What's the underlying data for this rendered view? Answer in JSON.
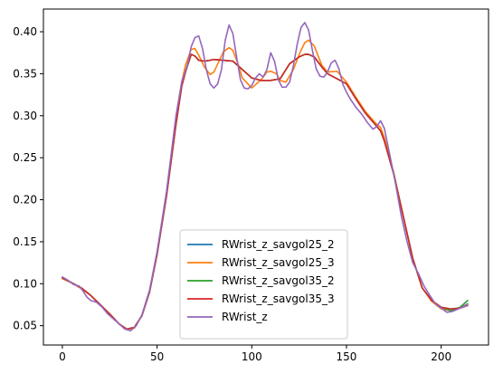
{
  "chart_data": {
    "type": "line",
    "title": "",
    "xlabel": "",
    "ylabel": "",
    "xlim": [
      -10,
      225
    ],
    "ylim": [
      0.027,
      0.427
    ],
    "xticks": [
      0,
      50,
      100,
      150,
      200
    ],
    "yticks": [
      0.05,
      0.1,
      0.15,
      0.2,
      0.25,
      0.3,
      0.35,
      0.4
    ],
    "xtick_labels": [
      "0",
      "50",
      "100",
      "150",
      "200"
    ],
    "ytick_labels": [
      "0.05",
      "0.10",
      "0.15",
      "0.20",
      "0.25",
      "0.30",
      "0.35",
      "0.40"
    ],
    "legend_position": "lower center",
    "grid": false,
    "series": [
      {
        "name": "RWrist_z_savgol25_2",
        "color": "#1f77b4",
        "x": [
          0,
          5,
          10,
          15,
          20,
          25,
          30,
          34,
          38,
          42,
          46,
          50,
          55,
          60,
          63,
          65,
          68,
          70,
          72,
          75,
          78,
          80,
          85,
          90,
          95,
          100,
          105,
          110,
          115,
          120,
          125,
          128,
          130,
          133,
          137,
          140,
          145,
          150,
          155,
          160,
          165,
          168,
          170,
          175,
          180,
          185,
          190,
          195,
          200,
          205,
          210,
          214
        ],
        "y": [
          0.107,
          0.101,
          0.095,
          0.086,
          0.075,
          0.064,
          0.052,
          0.046,
          0.048,
          0.062,
          0.09,
          0.135,
          0.205,
          0.29,
          0.335,
          0.352,
          0.373,
          0.371,
          0.366,
          0.365,
          0.366,
          0.367,
          0.366,
          0.365,
          0.355,
          0.345,
          0.342,
          0.342,
          0.344,
          0.362,
          0.37,
          0.373,
          0.373,
          0.37,
          0.358,
          0.35,
          0.344,
          0.338,
          0.32,
          0.303,
          0.29,
          0.282,
          0.27,
          0.23,
          0.18,
          0.13,
          0.095,
          0.08,
          0.072,
          0.07,
          0.071,
          0.076
        ]
      },
      {
        "name": "RWrist_z_savgol25_3",
        "color": "#ff7f0e",
        "x": [
          0,
          5,
          10,
          15,
          20,
          25,
          30,
          34,
          38,
          42,
          46,
          50,
          55,
          60,
          63,
          65,
          68,
          70,
          72,
          75,
          78,
          80,
          85,
          88,
          90,
          93,
          95,
          100,
          105,
          108,
          110,
          113,
          115,
          118,
          122,
          125,
          128,
          130,
          133,
          137,
          140,
          145,
          150,
          155,
          160,
          165,
          168,
          170,
          175,
          180,
          185,
          190,
          195,
          200,
          205,
          210,
          214
        ],
        "y": [
          0.106,
          0.101,
          0.094,
          0.086,
          0.075,
          0.064,
          0.052,
          0.046,
          0.047,
          0.062,
          0.09,
          0.135,
          0.205,
          0.295,
          0.34,
          0.36,
          0.379,
          0.38,
          0.372,
          0.358,
          0.349,
          0.352,
          0.376,
          0.381,
          0.378,
          0.36,
          0.345,
          0.333,
          0.343,
          0.352,
          0.353,
          0.35,
          0.342,
          0.34,
          0.355,
          0.373,
          0.387,
          0.39,
          0.383,
          0.36,
          0.352,
          0.353,
          0.34,
          0.322,
          0.305,
          0.292,
          0.286,
          0.274,
          0.232,
          0.18,
          0.13,
          0.095,
          0.079,
          0.07,
          0.068,
          0.071,
          0.075
        ]
      },
      {
        "name": "RWrist_z_savgol35_2",
        "color": "#2ca02c",
        "x": [
          0,
          5,
          10,
          15,
          20,
          25,
          30,
          34,
          38,
          42,
          46,
          50,
          55,
          60,
          63,
          65,
          68,
          70,
          72,
          75,
          78,
          80,
          85,
          90,
          95,
          100,
          105,
          110,
          115,
          120,
          125,
          128,
          130,
          133,
          137,
          140,
          145,
          150,
          155,
          160,
          165,
          168,
          170,
          175,
          180,
          185,
          190,
          195,
          200,
          205,
          210,
          214
        ],
        "y": [
          0.107,
          0.101,
          0.095,
          0.086,
          0.075,
          0.064,
          0.052,
          0.046,
          0.048,
          0.062,
          0.09,
          0.135,
          0.205,
          0.29,
          0.335,
          0.352,
          0.373,
          0.371,
          0.366,
          0.365,
          0.366,
          0.367,
          0.366,
          0.365,
          0.355,
          0.345,
          0.342,
          0.342,
          0.344,
          0.362,
          0.37,
          0.373,
          0.373,
          0.37,
          0.358,
          0.35,
          0.344,
          0.338,
          0.32,
          0.303,
          0.29,
          0.282,
          0.27,
          0.23,
          0.18,
          0.13,
          0.095,
          0.08,
          0.072,
          0.068,
          0.072,
          0.08
        ]
      },
      {
        "name": "RWrist_z_savgol35_3",
        "color": "#d62728",
        "x": [
          0,
          5,
          10,
          15,
          20,
          25,
          30,
          34,
          38,
          42,
          46,
          50,
          55,
          60,
          63,
          65,
          68,
          70,
          72,
          75,
          78,
          80,
          85,
          90,
          95,
          100,
          105,
          110,
          115,
          120,
          125,
          128,
          130,
          133,
          137,
          140,
          145,
          150,
          155,
          160,
          165,
          168,
          170,
          175,
          180,
          185,
          190,
          195,
          200,
          205,
          210,
          214
        ],
        "y": [
          0.107,
          0.101,
          0.095,
          0.086,
          0.075,
          0.064,
          0.052,
          0.046,
          0.048,
          0.062,
          0.09,
          0.135,
          0.205,
          0.29,
          0.335,
          0.352,
          0.373,
          0.371,
          0.366,
          0.365,
          0.366,
          0.367,
          0.366,
          0.365,
          0.355,
          0.345,
          0.342,
          0.342,
          0.344,
          0.362,
          0.37,
          0.373,
          0.373,
          0.37,
          0.358,
          0.35,
          0.344,
          0.338,
          0.32,
          0.303,
          0.29,
          0.282,
          0.27,
          0.23,
          0.18,
          0.13,
          0.095,
          0.08,
          0.072,
          0.07,
          0.071,
          0.074
        ]
      },
      {
        "name": "RWrist_z",
        "color": "#9467bd",
        "x": [
          0,
          3,
          6,
          9,
          11,
          13,
          15,
          18,
          21,
          24,
          27,
          30,
          33,
          36,
          39,
          42,
          46,
          50,
          55,
          60,
          63,
          66,
          68,
          70,
          72,
          74,
          76,
          78,
          80,
          82,
          84,
          86,
          88,
          90,
          92,
          94,
          96,
          98,
          100,
          102,
          104,
          106,
          108,
          110,
          112,
          114,
          116,
          118,
          120,
          122,
          124,
          126,
          128,
          130,
          132,
          134,
          136,
          138,
          140,
          142,
          144,
          146,
          148,
          150,
          152,
          155,
          158,
          161,
          164,
          166,
          168,
          170,
          173,
          176,
          179,
          182,
          185,
          188,
          191,
          194,
          197,
          200,
          203,
          206,
          209,
          212,
          214
        ],
        "y": [
          0.108,
          0.104,
          0.099,
          0.097,
          0.091,
          0.084,
          0.08,
          0.078,
          0.072,
          0.064,
          0.058,
          0.052,
          0.046,
          0.044,
          0.05,
          0.063,
          0.092,
          0.138,
          0.21,
          0.3,
          0.34,
          0.36,
          0.382,
          0.393,
          0.395,
          0.38,
          0.355,
          0.338,
          0.333,
          0.338,
          0.355,
          0.39,
          0.408,
          0.398,
          0.37,
          0.343,
          0.333,
          0.332,
          0.336,
          0.345,
          0.35,
          0.346,
          0.355,
          0.375,
          0.365,
          0.343,
          0.334,
          0.334,
          0.34,
          0.36,
          0.385,
          0.405,
          0.411,
          0.402,
          0.378,
          0.356,
          0.347,
          0.346,
          0.352,
          0.363,
          0.366,
          0.356,
          0.338,
          0.328,
          0.32,
          0.31,
          0.302,
          0.292,
          0.284,
          0.287,
          0.294,
          0.285,
          0.252,
          0.218,
          0.18,
          0.15,
          0.125,
          0.112,
          0.097,
          0.086,
          0.076,
          0.071,
          0.066,
          0.067,
          0.07,
          0.073,
          0.074
        ]
      }
    ]
  }
}
